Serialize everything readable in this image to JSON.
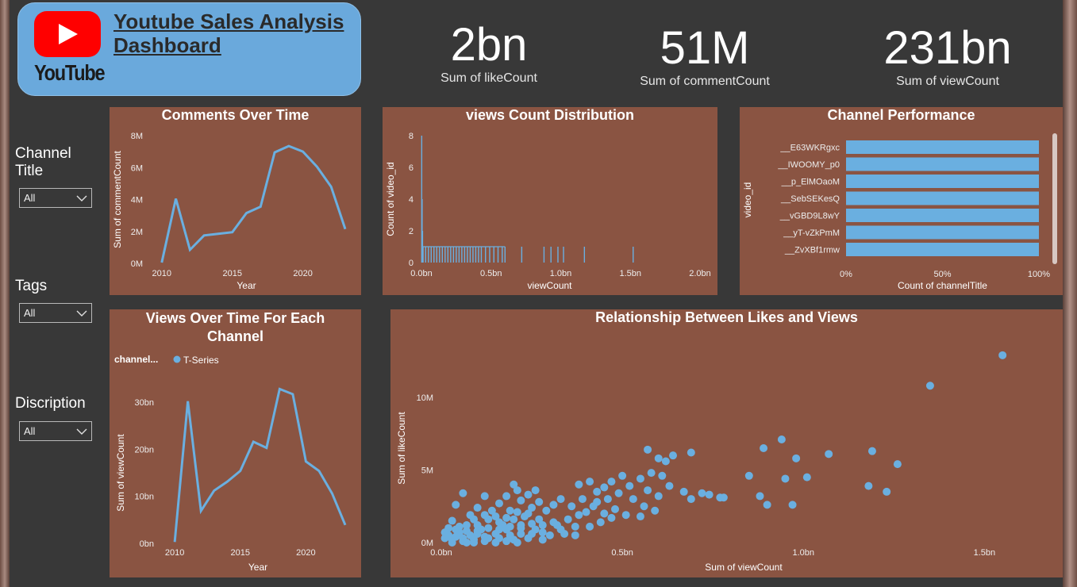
{
  "header": {
    "logo_text": "YouTube",
    "title": "Youtube Sales Analysis Dashboard"
  },
  "kpis": [
    {
      "value": "2bn",
      "label": "Sum of likeCount"
    },
    {
      "value": "51M",
      "label": "Sum of commentCount"
    },
    {
      "value": "231bn",
      "label": "Sum of viewCount"
    }
  ],
  "slicers": [
    {
      "title": "Channel Title",
      "value": "All"
    },
    {
      "title": "Tags",
      "value": "All"
    },
    {
      "title": "Discription",
      "value": "All"
    }
  ],
  "colors": {
    "accent": "#6aa9dc",
    "panel": "#8a5442",
    "background": "#383838"
  },
  "chart_data": [
    {
      "id": "comments",
      "type": "line",
      "title": "Comments Over Time",
      "xlabel": "Year",
      "ylabel": "Sum of commentCount",
      "x": [
        2010,
        2011,
        2012,
        2013,
        2014,
        2015,
        2016,
        2017,
        2018,
        2019,
        2020,
        2021,
        2022,
        2023
      ],
      "values": [
        0.05,
        4.05,
        0.85,
        1.75,
        1.85,
        1.95,
        3.15,
        3.55,
        6.95,
        7.35,
        7.0,
        6.05,
        4.8,
        2.15
      ],
      "xlim": [
        2009,
        2023
      ],
      "ylim": [
        0,
        8
      ],
      "yticks": [
        "0M",
        "2M",
        "4M",
        "6M",
        "8M"
      ],
      "xticks": [
        "2010",
        "2015",
        "2020"
      ]
    },
    {
      "id": "distribution",
      "type": "bar",
      "title": "views Count Distribution",
      "xlabel": "viewCount",
      "ylabel": "Count of video_id",
      "xlim": [
        0,
        2.0
      ],
      "ylim": [
        0,
        8
      ],
      "yticks": [
        "0",
        "2",
        "4",
        "6",
        "8"
      ],
      "xticks": [
        "0.0bn",
        "0.5bn",
        "1.0bn",
        "1.5bn",
        "2.0bn"
      ],
      "points": [
        {
          "x": 0.002,
          "y": 8
        },
        {
          "x": 0.005,
          "y": 4
        },
        {
          "x": 0.008,
          "y": 2
        },
        {
          "x": 0.012,
          "y": 1
        },
        {
          "x": 0.03,
          "y": 1
        },
        {
          "x": 0.05,
          "y": 1
        },
        {
          "x": 0.07,
          "y": 1
        },
        {
          "x": 0.09,
          "y": 1
        },
        {
          "x": 0.11,
          "y": 1
        },
        {
          "x": 0.13,
          "y": 1
        },
        {
          "x": 0.15,
          "y": 1
        },
        {
          "x": 0.17,
          "y": 1
        },
        {
          "x": 0.19,
          "y": 1
        },
        {
          "x": 0.21,
          "y": 1
        },
        {
          "x": 0.23,
          "y": 1
        },
        {
          "x": 0.25,
          "y": 1
        },
        {
          "x": 0.27,
          "y": 1
        },
        {
          "x": 0.29,
          "y": 1
        },
        {
          "x": 0.31,
          "y": 1
        },
        {
          "x": 0.33,
          "y": 1
        },
        {
          "x": 0.35,
          "y": 1
        },
        {
          "x": 0.37,
          "y": 1
        },
        {
          "x": 0.39,
          "y": 1
        },
        {
          "x": 0.41,
          "y": 1
        },
        {
          "x": 0.43,
          "y": 1
        },
        {
          "x": 0.46,
          "y": 1
        },
        {
          "x": 0.49,
          "y": 1
        },
        {
          "x": 0.52,
          "y": 1
        },
        {
          "x": 0.55,
          "y": 1
        },
        {
          "x": 0.58,
          "y": 1
        },
        {
          "x": 0.6,
          "y": 1
        },
        {
          "x": 0.72,
          "y": 1
        },
        {
          "x": 0.88,
          "y": 1
        },
        {
          "x": 0.93,
          "y": 1
        },
        {
          "x": 0.98,
          "y": 1
        },
        {
          "x": 1.02,
          "y": 1
        },
        {
          "x": 1.17,
          "y": 1
        },
        {
          "x": 1.52,
          "y": 1
        }
      ]
    },
    {
      "id": "channel",
      "type": "bar",
      "orientation": "horizontal",
      "title": "Channel Performance",
      "xlabel": "Count of channelTitle",
      "ylabel": "video_id",
      "categories": [
        "__E63WKRgxc",
        "__IWOOMY_p0",
        "__p_ElMOaoM",
        "__SebSEKesQ",
        "__vGBD9L8wY",
        "__yT-vZkPmM",
        "__ZvXBf1rmw"
      ],
      "values": [
        100,
        100,
        100,
        100,
        100,
        100,
        100
      ],
      "xlim": [
        0,
        100
      ],
      "xticks": [
        "0%",
        "50%",
        "100%"
      ]
    },
    {
      "id": "views",
      "type": "line",
      "title": "Views Over Time For Each Channel",
      "legend_title": "channel...",
      "series": [
        {
          "name": "T-Series",
          "values": [
            0.3,
            30.2,
            6.9,
            11.2,
            13.1,
            15.4,
            21.6,
            20.3,
            32.8,
            31.7,
            17.4,
            15.4,
            10.6,
            3.9
          ]
        }
      ],
      "x": [
        2010,
        2011,
        2012,
        2013,
        2014,
        2015,
        2016,
        2017,
        2018,
        2019,
        2020,
        2021,
        2022,
        2023
      ],
      "xlabel": "Year",
      "ylabel": "Sum of viewCount",
      "xlim": [
        2008.6,
        2023
      ],
      "ylim": [
        0,
        30
      ],
      "yticks": [
        "0bn",
        "10bn",
        "20bn",
        "30bn"
      ],
      "xticks": [
        "2010",
        "2015",
        "2020"
      ]
    },
    {
      "id": "scatter",
      "type": "scatter",
      "title": "Relationship Between Likes and Views",
      "xlabel": "Sum of viewCount",
      "ylabel": "Sum of likeCount",
      "xlim": [
        0,
        1.6
      ],
      "ylim": [
        0,
        13
      ],
      "xticks": [
        "0.0bn",
        "0.5bn",
        "1.0bn",
        "1.5bn"
      ],
      "yticks": [
        "0M",
        "5M",
        "10M"
      ],
      "points": [
        [
          1.55,
          12.9
        ],
        [
          1.35,
          10.8
        ],
        [
          0.94,
          7.1
        ],
        [
          0.89,
          6.5
        ],
        [
          0.98,
          5.8
        ],
        [
          1.07,
          6.1
        ],
        [
          1.19,
          6.3
        ],
        [
          1.26,
          5.4
        ],
        [
          0.85,
          4.6
        ],
        [
          0.95,
          4.4
        ],
        [
          1.01,
          4.5
        ],
        [
          1.18,
          3.9
        ],
        [
          1.23,
          3.5
        ],
        [
          0.88,
          3.2
        ],
        [
          0.9,
          2.6
        ],
        [
          0.97,
          2.6
        ],
        [
          0.57,
          6.4
        ],
        [
          0.6,
          5.8
        ],
        [
          0.62,
          5.6
        ],
        [
          0.64,
          6.0
        ],
        [
          0.69,
          6.2
        ],
        [
          0.58,
          4.8
        ],
        [
          0.61,
          4.6
        ],
        [
          0.63,
          3.9
        ],
        [
          0.57,
          3.6
        ],
        [
          0.6,
          3.2
        ],
        [
          0.67,
          3.5
        ],
        [
          0.72,
          3.4
        ],
        [
          0.74,
          3.3
        ],
        [
          0.77,
          3.1
        ],
        [
          0.78,
          3.1
        ],
        [
          0.69,
          3.0
        ],
        [
          0.55,
          4.4
        ],
        [
          0.5,
          4.6
        ],
        [
          0.47,
          4.2
        ],
        [
          0.52,
          3.9
        ],
        [
          0.45,
          3.8
        ],
        [
          0.41,
          4.2
        ],
        [
          0.38,
          4.0
        ],
        [
          0.43,
          3.5
        ],
        [
          0.49,
          3.4
        ],
        [
          0.53,
          3.0
        ],
        [
          0.56,
          2.5
        ],
        [
          0.59,
          2.2
        ],
        [
          0.55,
          1.8
        ],
        [
          0.48,
          2.3
        ],
        [
          0.45,
          2.0
        ],
        [
          0.42,
          2.5
        ],
        [
          0.39,
          3.0
        ],
        [
          0.36,
          2.5
        ],
        [
          0.33,
          3.0
        ],
        [
          0.31,
          2.6
        ],
        [
          0.29,
          2.2
        ],
        [
          0.27,
          2.8
        ],
        [
          0.25,
          2.4
        ],
        [
          0.22,
          2.9
        ],
        [
          0.21,
          3.6
        ],
        [
          0.24,
          3.3
        ],
        [
          0.26,
          3.6
        ],
        [
          0.2,
          4.0
        ],
        [
          0.18,
          3.2
        ],
        [
          0.19,
          2.2
        ],
        [
          0.16,
          2.7
        ],
        [
          0.14,
          2.2
        ],
        [
          0.12,
          3.2
        ],
        [
          0.1,
          2.4
        ],
        [
          0.08,
          1.9
        ],
        [
          0.06,
          3.4
        ],
        [
          0.04,
          2.6
        ],
        [
          0.35,
          1.6
        ],
        [
          0.31,
          1.4
        ],
        [
          0.27,
          1.6
        ],
        [
          0.23,
          1.8
        ],
        [
          0.2,
          1.6
        ],
        [
          0.17,
          1.2
        ],
        [
          0.13,
          1.6
        ],
        [
          0.1,
          1.2
        ],
        [
          0.07,
          1.2
        ],
        [
          0.03,
          1.5
        ],
        [
          0.02,
          1.0
        ],
        [
          0.05,
          0.7
        ],
        [
          0.08,
          0.5
        ],
        [
          0.11,
          0.9
        ],
        [
          0.15,
          0.6
        ],
        [
          0.18,
          0.9
        ],
        [
          0.22,
          0.6
        ],
        [
          0.26,
          0.9
        ],
        [
          0.3,
          0.5
        ],
        [
          0.33,
          0.9
        ],
        [
          0.37,
          1.1
        ],
        [
          0.01,
          0.3
        ],
        [
          0.03,
          0.2
        ],
        [
          0.06,
          0.3
        ],
        [
          0.09,
          0.2
        ],
        [
          0.12,
          0.4
        ],
        [
          0.16,
          0.3
        ],
        [
          0.2,
          0.2
        ],
        [
          0.24,
          0.3
        ],
        [
          0.28,
          0.2
        ],
        [
          0.04,
          0.9
        ],
        [
          0.07,
          0.8
        ],
        [
          0.1,
          0.6
        ],
        [
          0.13,
          1.0
        ],
        [
          0.16,
          1.4
        ],
        [
          0.19,
          1.1
        ],
        [
          0.22,
          1.2
        ],
        [
          0.25,
          1.3
        ],
        [
          0.28,
          1.2
        ],
        [
          0.02,
          0.5
        ],
        [
          0.05,
          1.1
        ],
        [
          0.09,
          1.6
        ],
        [
          0.12,
          1.9
        ],
        [
          0.15,
          1.8
        ],
        [
          0.18,
          1.7
        ],
        [
          0.21,
          2.1
        ],
        [
          0.24,
          2.0
        ],
        [
          0.03,
          0.0
        ],
        [
          0.06,
          0.1
        ],
        [
          0.09,
          0.0
        ],
        [
          0.12,
          0.1
        ],
        [
          0.15,
          0.0
        ],
        [
          0.18,
          0.1
        ],
        [
          0.21,
          0.0
        ],
        [
          0.01,
          0.7
        ],
        [
          0.04,
          0.4
        ],
        [
          0.07,
          0.0
        ],
        [
          0.1,
          0.8
        ],
        [
          0.13,
          0.3
        ],
        [
          0.16,
          0.9
        ],
        [
          0.19,
          0.5
        ],
        [
          0.22,
          1.0
        ],
        [
          0.25,
          0.6
        ],
        [
          0.28,
          0.7
        ],
        [
          0.32,
          1.2
        ],
        [
          0.34,
          0.6
        ],
        [
          0.37,
          0.5
        ],
        [
          0.41,
          1.1
        ],
        [
          0.44,
          1.4
        ],
        [
          0.47,
          1.7
        ],
        [
          0.51,
          1.9
        ],
        [
          0.38,
          1.9
        ],
        [
          0.4,
          2.1
        ],
        [
          0.43,
          2.8
        ],
        [
          0.46,
          3.0
        ]
      ]
    }
  ]
}
